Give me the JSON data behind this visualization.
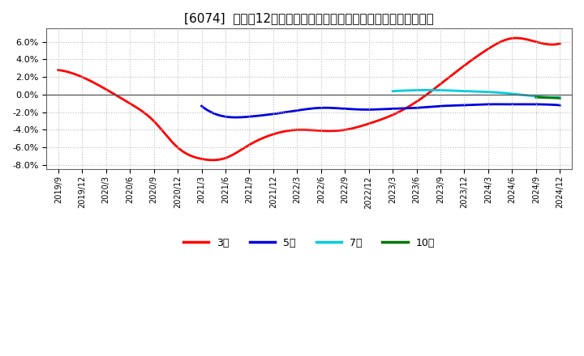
{
  "title": "[6074]  売上高12か月移動合計の対前年同期増減率の平均値の推移",
  "title_fontsize": 11,
  "background_color": "#ffffff",
  "plot_bg_color": "#ffffff",
  "grid_color": "#bbbbbb",
  "ylim": [
    -0.085,
    0.075
  ],
  "yticks": [
    -0.08,
    -0.06,
    -0.04,
    -0.02,
    0.0,
    0.02,
    0.04,
    0.06
  ],
  "legend_labels": [
    "3年",
    "5年",
    "7年",
    "10年"
  ],
  "legend_colors": [
    "#ff0000",
    "#0000dd",
    "#00ccdd",
    "#007700"
  ],
  "series": {
    "3year": {
      "color": "#ff0000",
      "x": [
        0,
        1,
        2,
        3,
        4,
        5,
        6,
        7,
        8,
        9,
        10,
        11,
        12,
        13,
        14,
        15,
        16,
        17,
        18,
        19,
        20,
        21
      ],
      "y": [
        0.028,
        0.02,
        0.006,
        -0.01,
        -0.03,
        -0.06,
        -0.073,
        -0.072,
        -0.057,
        -0.045,
        -0.04,
        -0.041,
        -0.04,
        -0.033,
        -0.023,
        -0.008,
        0.012,
        0.033,
        0.052,
        0.064,
        0.06,
        0.058
      ]
    },
    "5year": {
      "color": "#0000dd",
      "x": [
        6,
        7,
        8,
        9,
        10,
        11,
        12,
        13,
        14,
        15,
        16,
        17,
        18,
        19,
        20,
        21
      ],
      "y": [
        -0.013,
        -0.025,
        -0.025,
        -0.022,
        -0.018,
        -0.015,
        -0.016,
        -0.017,
        -0.016,
        -0.015,
        -0.013,
        -0.012,
        -0.011,
        -0.011,
        -0.011,
        -0.012
      ]
    },
    "7year": {
      "color": "#00ccdd",
      "x": [
        14,
        15,
        16,
        17,
        18,
        19,
        20,
        21
      ],
      "y": [
        0.004,
        0.005,
        0.005,
        0.004,
        0.003,
        0.001,
        -0.002,
        -0.003
      ]
    },
    "10year": {
      "color": "#007700",
      "x": [
        20,
        21
      ],
      "y": [
        -0.003,
        -0.004
      ]
    }
  },
  "xtick_labels": [
    "2019/9",
    "2019/12",
    "2020/3",
    "2020/6",
    "2020/9",
    "2020/12",
    "2021/3",
    "2021/6",
    "2021/9",
    "2021/12",
    "2022/3",
    "2022/6",
    "2022/9",
    "2022/12",
    "2023/3",
    "2023/6",
    "2023/9",
    "2023/12",
    "2024/3",
    "2024/6",
    "2024/9",
    "2024/12"
  ]
}
